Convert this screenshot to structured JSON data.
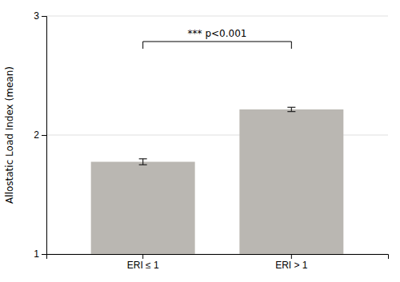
{
  "chart_data": {
    "type": "bar",
    "categories": [
      "ERI ≤ 1",
      "ERI > 1"
    ],
    "values": [
      1.775,
      2.215
    ],
    "errors": [
      0.025,
      0.018
    ],
    "color": "#bab7b2",
    "ylabel": "Allostatic Load Index (mean)",
    "ylim": [
      1,
      3
    ],
    "yticks": [
      1,
      2,
      3
    ],
    "grid": true,
    "annotations": [
      "*** p<0.001"
    ]
  }
}
